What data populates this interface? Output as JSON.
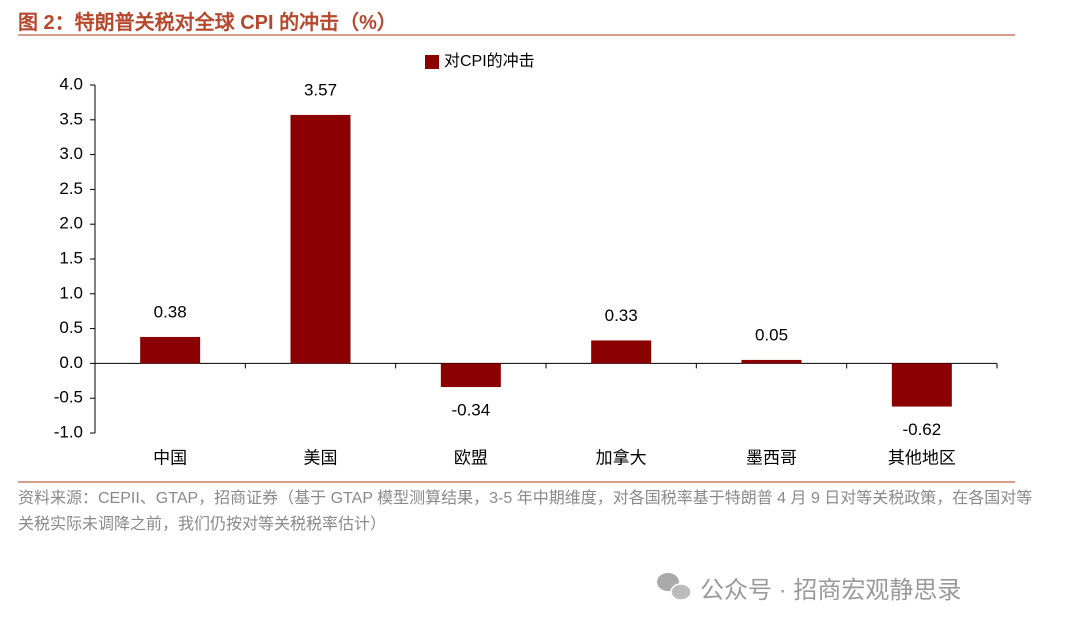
{
  "title": "图 2：特朗普关税对全球 CPI 的冲击（%）",
  "source": "资料来源：CEPII、GTAP，招商证券（基于 GTAP 模型测算结果，3-5 年中期维度，对各国税率基于特朗普 4 月 9 日对等关税政策，在各国对等关税实际未调降之前，我们仍按对等关税税率估计）",
  "watermark": "公众号 · 招商宏观静思录",
  "chart_data": {
    "type": "bar",
    "categories": [
      "中国",
      "美国",
      "欧盟",
      "加拿大",
      "墨西哥",
      "其他地区"
    ],
    "series": [
      {
        "name": "对CPI的冲击",
        "color": "#8b0000",
        "values": [
          0.38,
          3.57,
          -0.34,
          0.33,
          0.05,
          -0.62
        ]
      }
    ],
    "ylim": [
      -1,
      4
    ],
    "yticks": [
      {
        "value": -1,
        "label": "-1.0"
      },
      -0.5,
      {
        "value": 0,
        "label": "0.0"
      },
      0.5,
      {
        "value": 1,
        "label": "1.0"
      },
      1.5,
      {
        "value": 2,
        "label": "2.0"
      },
      2.5,
      {
        "value": 3,
        "label": "3.0"
      },
      3.5,
      {
        "value": 4,
        "label": "4.0"
      }
    ],
    "legend": "top"
  }
}
